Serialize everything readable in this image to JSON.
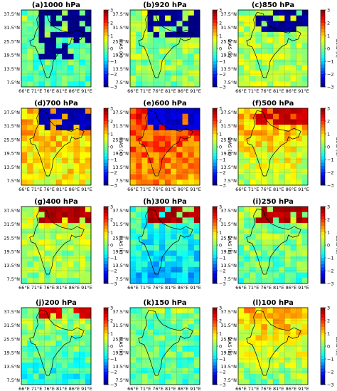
{
  "figure": {
    "colorbar": {
      "label": "BIAS (K)",
      "min": -3,
      "max": 3,
      "ticks": [
        "3",
        "2",
        "1",
        "0",
        "−1",
        "−2",
        "−3"
      ],
      "colormap": "jet"
    },
    "axes": {
      "y_ticks": [
        "37.5°N",
        "31.5°N",
        "25.5°N",
        "19.5°N",
        "13.5°N",
        "7.5°N"
      ],
      "x_ticks": [
        "66°E",
        "71°E",
        "76°E",
        "81°E",
        "86°E",
        "91°E"
      ]
    },
    "panels": [
      {
        "tag": "(a)",
        "level": "1000 hPa"
      },
      {
        "tag": "(b)",
        "level": "920 hPa"
      },
      {
        "tag": "(c)",
        "level": "850 hPa"
      },
      {
        "tag": "(d)",
        "level": "700 hPa"
      },
      {
        "tag": "(e)",
        "level": "600 hPa"
      },
      {
        "tag": "(f)",
        "level": "500 hPa"
      },
      {
        "tag": "(g)",
        "level": "400 hPa"
      },
      {
        "tag": "(h)",
        "level": "300 hPa"
      },
      {
        "tag": "(i)",
        "level": "250 hPa"
      },
      {
        "tag": "(j)",
        "level": "200 hPa"
      },
      {
        "tag": "(k)",
        "level": "150 hPa"
      },
      {
        "tag": "(l)",
        "level": "100 hPa"
      }
    ]
  }
}
